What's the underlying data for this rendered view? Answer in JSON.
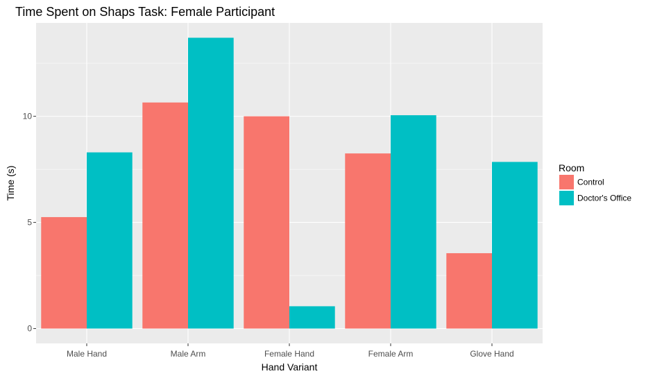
{
  "chart_data": {
    "type": "bar",
    "title": "Time Spent on Shaps Task: Female Participant",
    "xlabel": "Hand Variant",
    "ylabel": "Time (s)",
    "categories": [
      "Male Hand",
      "Male Arm",
      "Female Hand",
      "Female Arm",
      "Glove Hand"
    ],
    "series": [
      {
        "name": "Control",
        "color": "#F8766D",
        "values": [
          5.25,
          10.65,
          10.0,
          8.25,
          3.55
        ]
      },
      {
        "name": "Doctor's Office",
        "color": "#00BFC4",
        "values": [
          8.3,
          13.7,
          1.05,
          10.05,
          7.85
        ]
      }
    ],
    "ylim": [
      -0.7,
      14.4
    ],
    "yticks": [
      0,
      5,
      10
    ],
    "ytick_labels": [
      "0",
      "5",
      "10"
    ],
    "grid": true,
    "panel_background": "#EBEBEB",
    "grid_color": "#FFFFFF",
    "legend": {
      "title": "Room",
      "position": "right"
    }
  }
}
